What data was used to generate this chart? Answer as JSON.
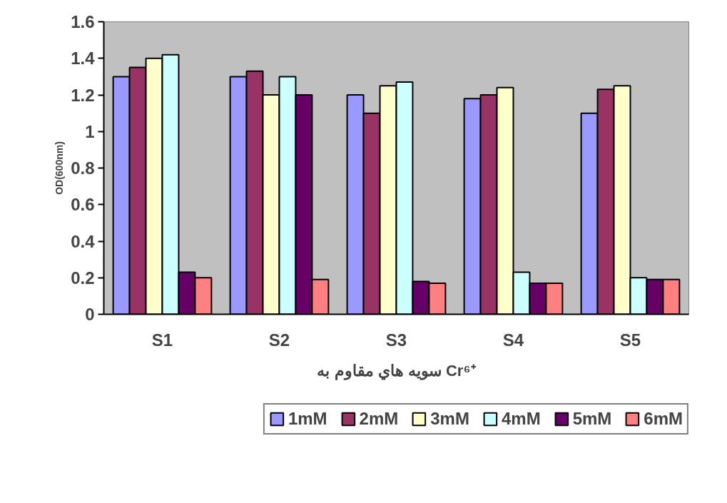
{
  "chart_data": {
    "type": "bar",
    "ylabel": "OD(600nm)",
    "xlabel": "سويه هاي مقاوم به Cr⁶⁺",
    "categories": [
      "S1",
      "S2",
      "S3",
      "S4",
      "S5"
    ],
    "series": [
      {
        "name": "1mM",
        "color": "#9999ff",
        "values": [
          1.3,
          1.3,
          1.2,
          1.18,
          1.1
        ]
      },
      {
        "name": "2mM",
        "color": "#993366",
        "values": [
          1.35,
          1.33,
          1.1,
          1.2,
          1.23
        ]
      },
      {
        "name": "3mM",
        "color": "#ffffcc",
        "values": [
          1.4,
          1.2,
          1.25,
          1.24,
          1.25
        ]
      },
      {
        "name": "4mM",
        "color": "#ccffff",
        "values": [
          1.42,
          1.3,
          1.27,
          0.23,
          0.2
        ]
      },
      {
        "name": "5mM",
        "color": "#660066",
        "values": [
          0.23,
          1.2,
          0.18,
          0.17,
          0.19
        ]
      },
      {
        "name": "6mM",
        "color": "#ff8080",
        "values": [
          0.2,
          0.19,
          0.17,
          0.17,
          0.19
        ]
      }
    ],
    "ylim": [
      0,
      1.6
    ],
    "yticks": [
      0,
      0.2,
      0.4,
      0.6,
      0.8,
      1,
      1.2,
      1.4,
      1.6
    ],
    "grid": false,
    "legend": "bottom"
  }
}
